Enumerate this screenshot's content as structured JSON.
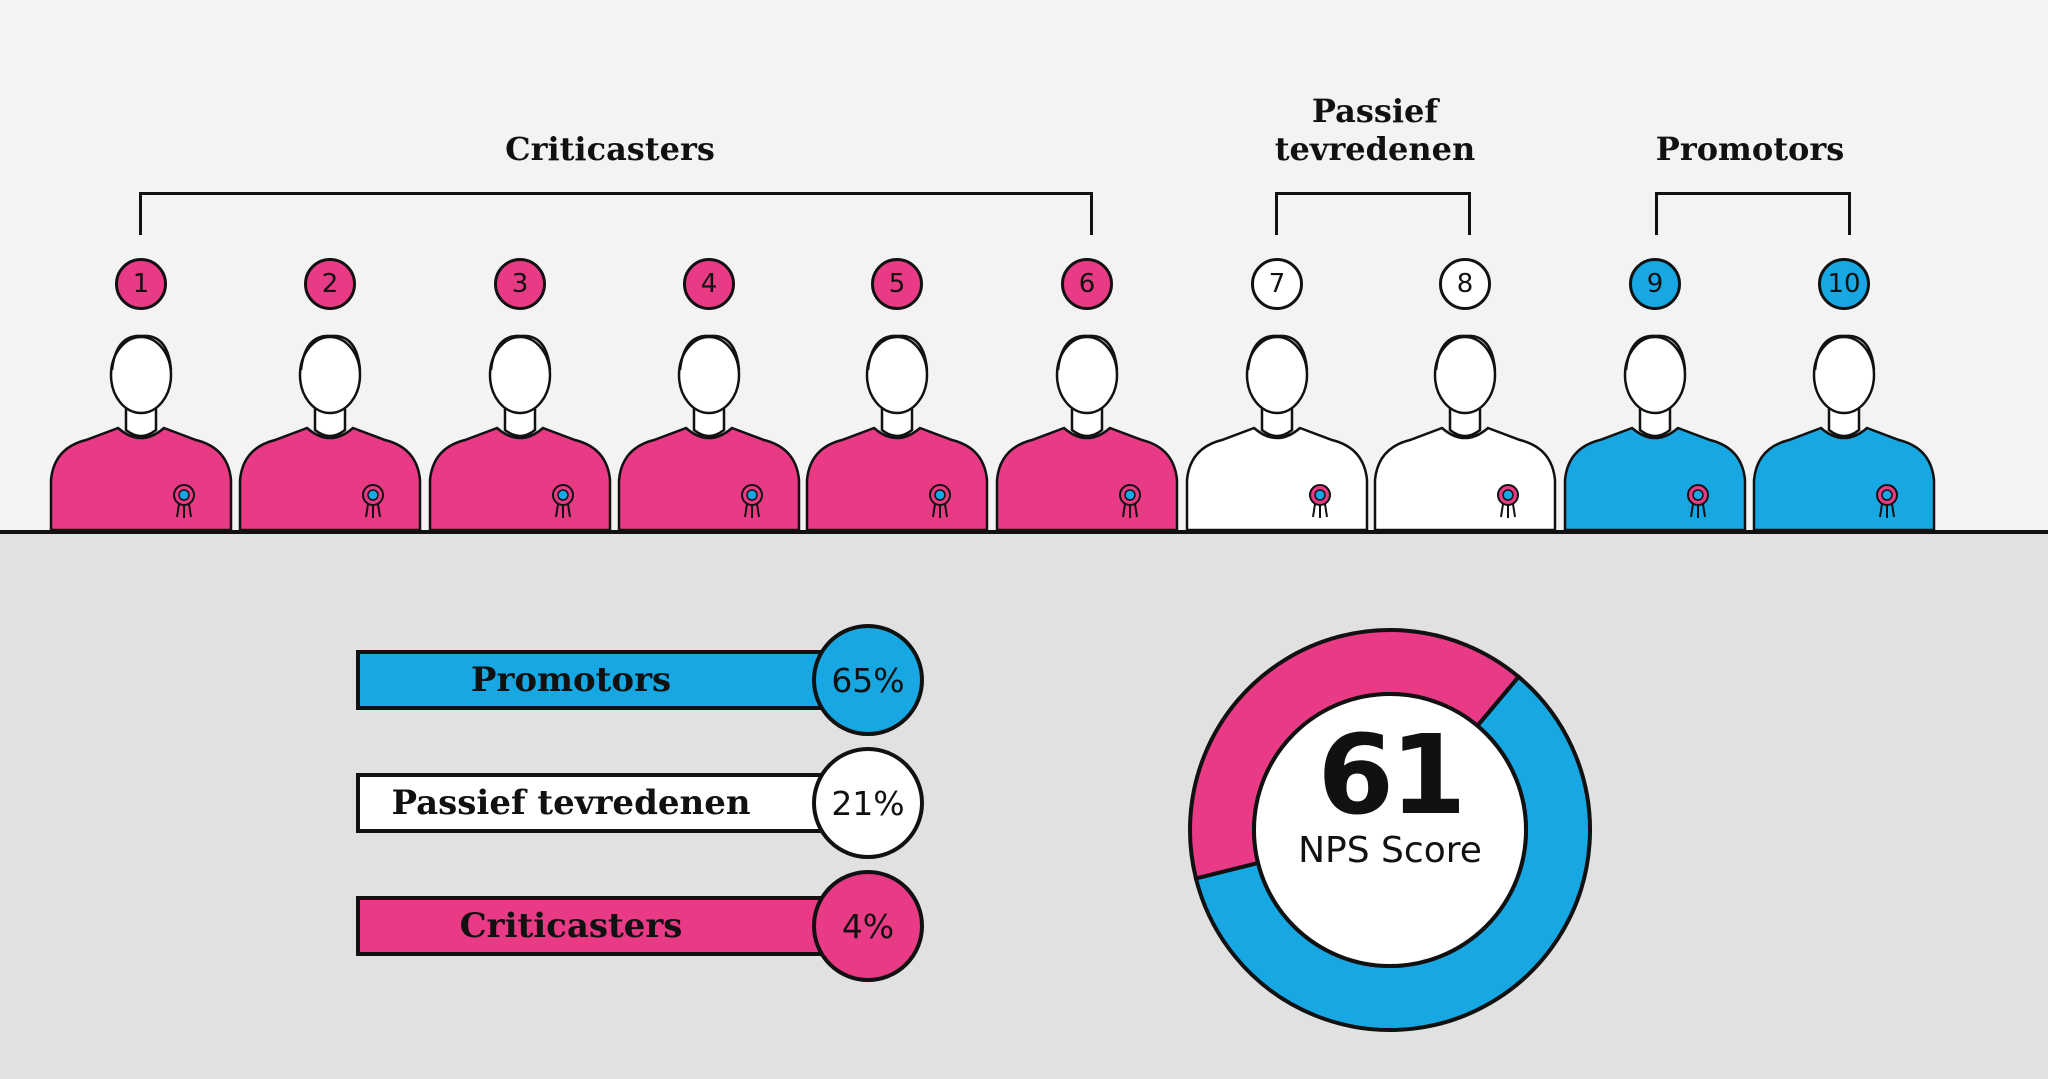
{
  "colors": {
    "criticaster": "#e83a85",
    "passive": "#ffffff",
    "promoter": "#17a8e3",
    "ink": "#111111"
  },
  "groups": {
    "criticasters": "Criticasters",
    "passive_line1": "Passief",
    "passive_line2": "tevredenen",
    "promotors": "Promotors"
  },
  "scores": [
    "1",
    "2",
    "3",
    "4",
    "5",
    "6",
    "7",
    "8",
    "9",
    "10"
  ],
  "legend": [
    {
      "label": "Promotors",
      "percent": "65%",
      "category": "promoter"
    },
    {
      "label": "Passief tevredenen",
      "percent": "21%",
      "category": "passive"
    },
    {
      "label": "Criticasters",
      "percent": "4%",
      "category": "criticaster"
    }
  ],
  "nps": {
    "value": "61",
    "label": "NPS Score",
    "donut_share": {
      "promoter": 0.6,
      "criticaster": 0.4
    }
  }
}
